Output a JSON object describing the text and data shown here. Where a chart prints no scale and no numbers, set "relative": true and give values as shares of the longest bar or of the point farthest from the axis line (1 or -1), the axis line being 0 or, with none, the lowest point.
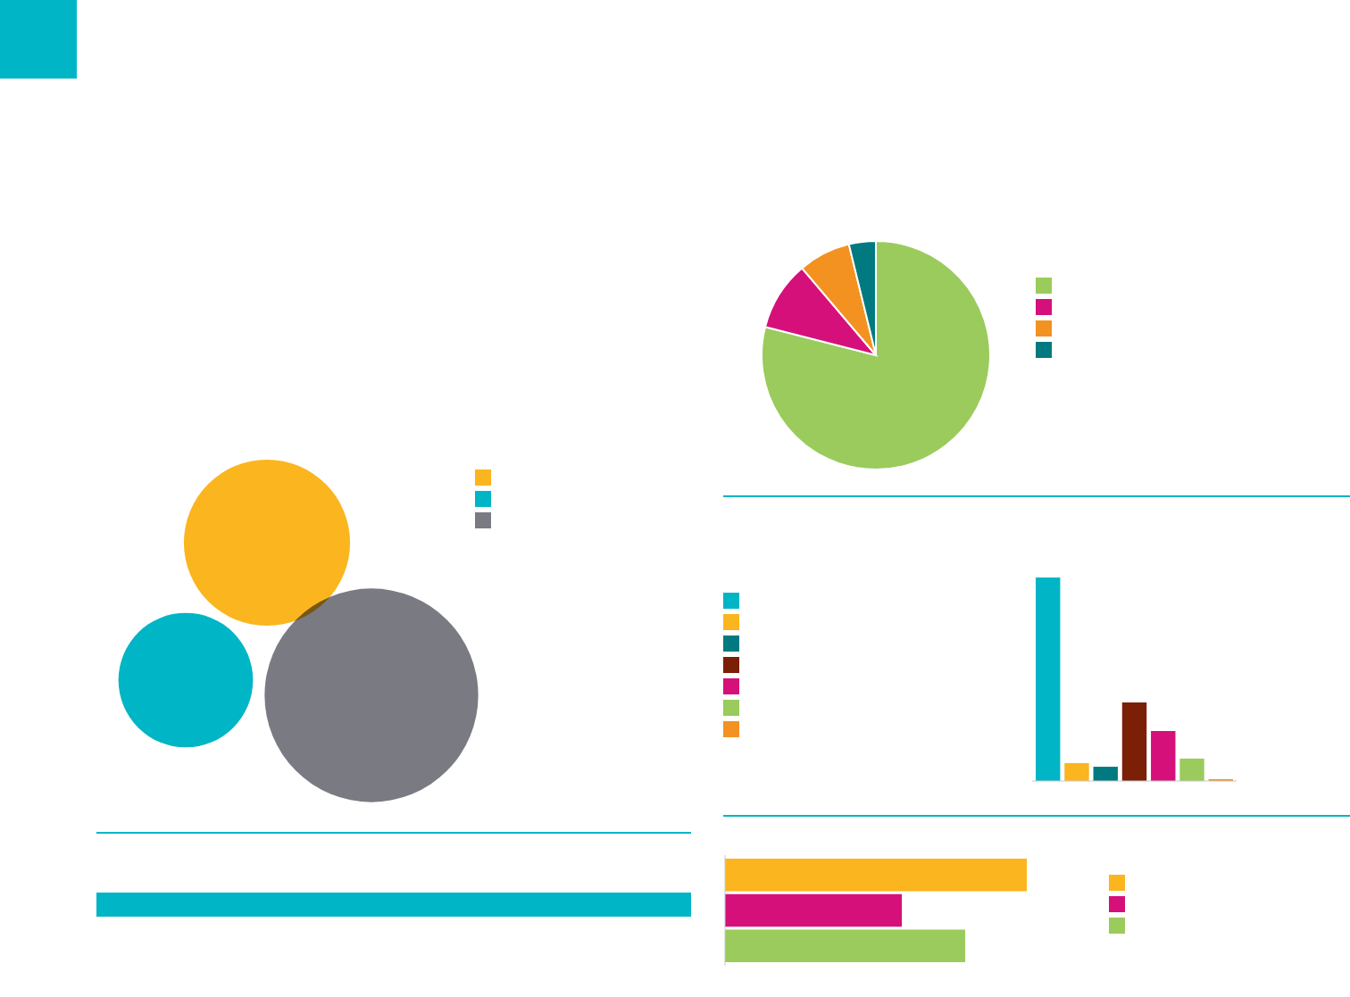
{
  "chart_data": [
    {
      "type": "other",
      "colors": [
        "#fbb51e",
        "#00b5c6",
        "#7a7a82"
      ]
    },
    {
      "type": "pie",
      "categories": [
        null,
        null,
        null,
        null
      ],
      "values": [
        79,
        9.8,
        7.4,
        3.8
      ],
      "colors": [
        "#9acb5c",
        "#d6107a",
        "#f39221",
        "#007a80"
      ]
    },
    {
      "type": "bar",
      "relative": true,
      "categories": [
        null,
        null,
        null,
        null,
        null,
        null,
        null
      ],
      "values": [
        1,
        0.088,
        0.07,
        0.386,
        0.246,
        0.11,
        0.009
      ],
      "colors": [
        "#00b5c6",
        "#fbb51e",
        "#007a80",
        "#7b1f07",
        "#d6107a",
        "#9acb5c",
        "#f39221"
      ]
    },
    {
      "type": "bar",
      "orientation": "horizontal",
      "relative": true,
      "categories": [
        null,
        null,
        null
      ],
      "values": [
        1,
        0.586,
        0.796
      ],
      "colors": [
        "#fbb51e",
        "#d6107a",
        "#9acb5c"
      ]
    }
  ]
}
